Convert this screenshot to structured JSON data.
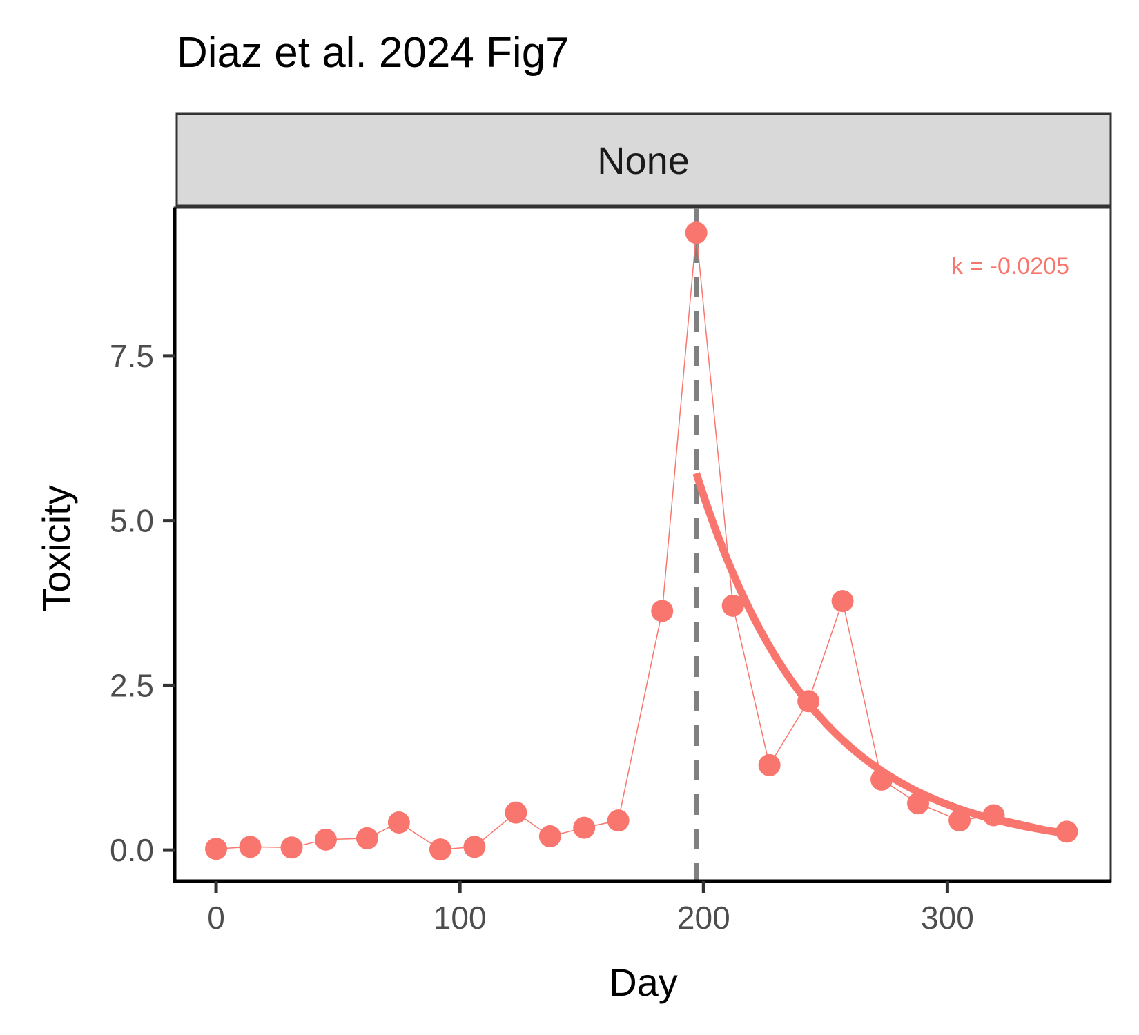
{
  "chart_data": {
    "type": "line",
    "title": "Diaz et al. 2024 Fig7",
    "facet_label": "None",
    "xlabel": "Day",
    "ylabel": "Toxicity",
    "xlim": [
      -17,
      367
    ],
    "ylim": [
      -0.47,
      9.75
    ],
    "x_ticks": [
      0,
      100,
      200,
      300
    ],
    "x_tick_labels": [
      "0",
      "100",
      "200",
      "300"
    ],
    "y_ticks": [
      0,
      2.5,
      5,
      7.5
    ],
    "y_tick_labels": [
      "0.0",
      "2.5",
      "5.0",
      "7.5"
    ],
    "grid": false,
    "legend": "none",
    "series": [
      {
        "x": [
          0,
          14,
          31,
          45,
          62,
          75,
          92,
          106,
          123,
          137,
          151,
          165,
          183,
          197,
          212,
          227,
          243,
          257,
          273,
          288,
          305,
          319,
          349
        ],
        "y": [
          0.02,
          0.05,
          0.04,
          0.16,
          0.18,
          0.42,
          0.01,
          0.05,
          0.57,
          0.21,
          0.34,
          0.45,
          3.63,
          9.37,
          3.71,
          1.29,
          2.26,
          3.78,
          1.07,
          0.71,
          0.45,
          0.53,
          0.28
        ],
        "color": "#F8766D"
      }
    ],
    "fit": {
      "x_start": 197,
      "x_end": 349,
      "y0": 5.72,
      "k": -0.0205,
      "color": "#F8766D"
    },
    "vline": {
      "x": 197,
      "style": "dashed",
      "color": "#808080"
    },
    "annotation": {
      "text": "k = -0.0205",
      "position": "top-right",
      "color": "#F8766D"
    }
  }
}
